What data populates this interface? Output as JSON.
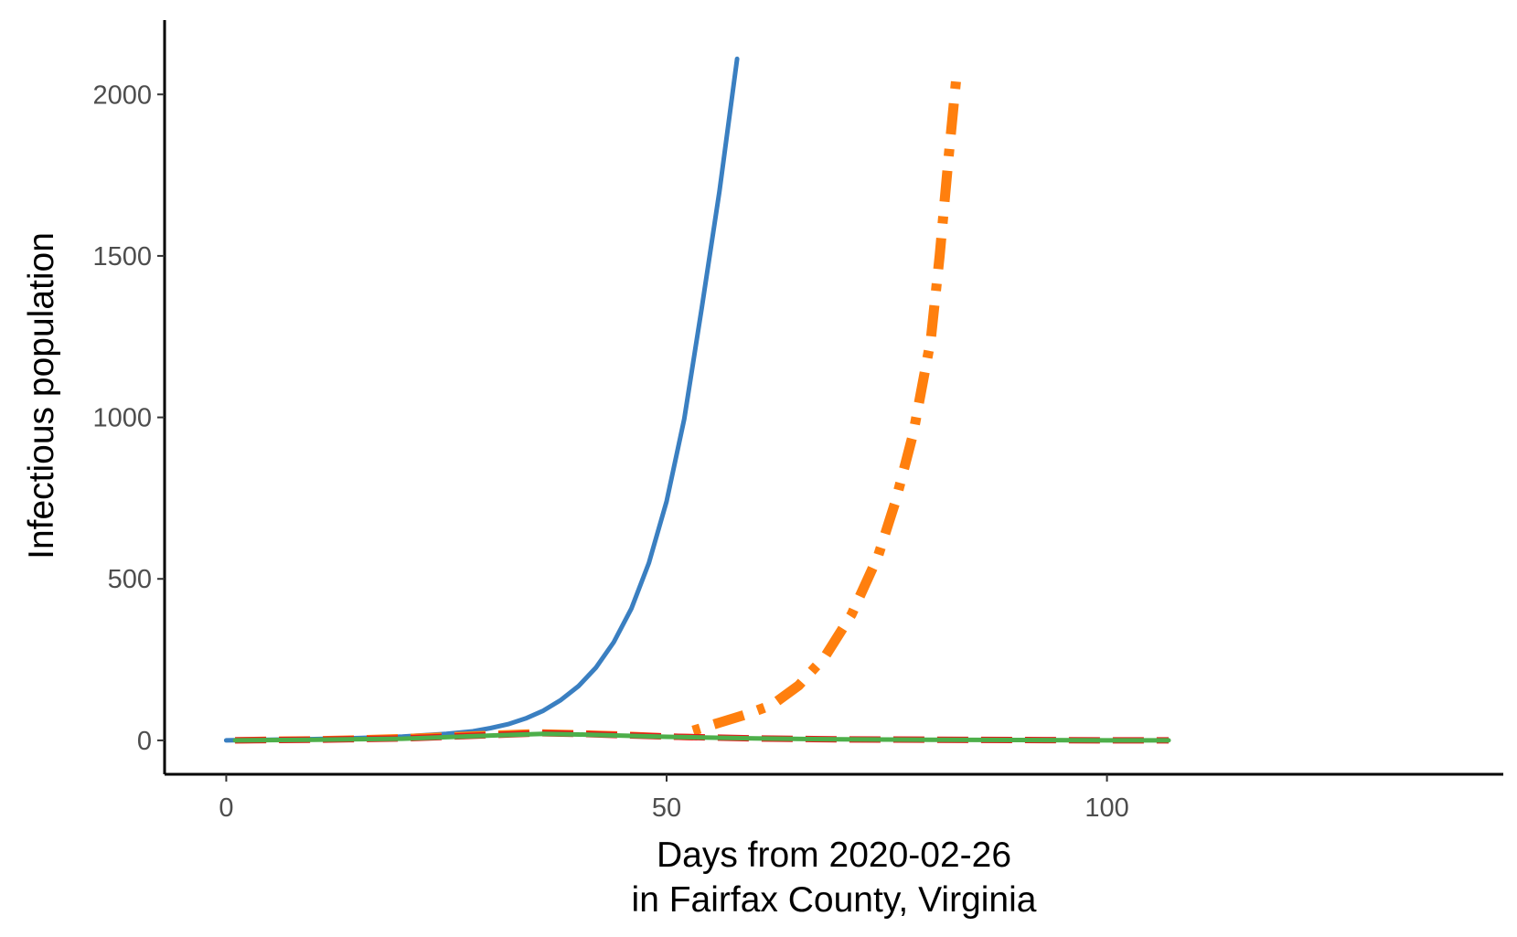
{
  "chart_data": {
    "type": "line",
    "xlabel_line1": "Days from 2020-02-26",
    "xlabel_line2": "in Fairfax County, Virginia",
    "ylabel": "Infectious population",
    "xlim": [
      -7,
      145
    ],
    "ylim": [
      -105,
      2230
    ],
    "x_ticks": [
      0,
      50,
      100
    ],
    "y_ticks": [
      0,
      500,
      1000,
      1500,
      2000
    ],
    "x_tick_labels": [
      "0",
      "50",
      "100"
    ],
    "y_tick_labels": [
      "0",
      "500",
      "1000",
      "1500",
      "2000"
    ],
    "grid": false,
    "legend": "none",
    "series": [
      {
        "color": "#3a7fc1",
        "style": "solid",
        "x": [
          0,
          5,
          10,
          15,
          20,
          25,
          28,
          30,
          32,
          34,
          36,
          38,
          40,
          42,
          44,
          46,
          48,
          50,
          52,
          54,
          56,
          58
        ],
        "y": [
          0,
          2,
          4,
          7,
          12,
          20,
          28,
          38,
          50,
          68,
          92,
          125,
          168,
          226,
          304,
          408,
          550,
          740,
          995,
          1340,
          1700,
          2110
        ]
      },
      {
        "color": "#ff7f0e",
        "style": "dotdash",
        "x": [
          53,
          56,
          59,
          62,
          65,
          68,
          71,
          74,
          76,
          78,
          80,
          81,
          82,
          83
        ],
        "y": [
          30,
          55,
          80,
          110,
          170,
          260,
          390,
          570,
          740,
          950,
          1240,
          1500,
          1800,
          2080
        ]
      },
      {
        "color": "#ff7f0e",
        "style": "dashed",
        "x": [
          1,
          5,
          10,
          15,
          20,
          25,
          30,
          35,
          40,
          45,
          50,
          53
        ],
        "y": [
          0,
          2,
          3,
          6,
          10,
          15,
          20,
          25,
          22,
          18,
          12,
          10
        ]
      },
      {
        "color": "#e41a1c",
        "style": "dashed",
        "x": [
          1,
          10,
          20,
          30,
          36,
          40,
          50,
          60,
          70,
          80,
          90,
          100,
          107
        ],
        "y": [
          0,
          2,
          6,
          16,
          22,
          20,
          12,
          6,
          3,
          2,
          1,
          0,
          0
        ]
      },
      {
        "color": "#4daf4a",
        "style": "solid",
        "x": [
          1,
          10,
          20,
          30,
          36,
          40,
          50,
          60,
          70,
          80,
          90,
          100,
          107
        ],
        "y": [
          0,
          2,
          5,
          15,
          20,
          18,
          11,
          6,
          3,
          2,
          1,
          0,
          0
        ]
      }
    ]
  }
}
